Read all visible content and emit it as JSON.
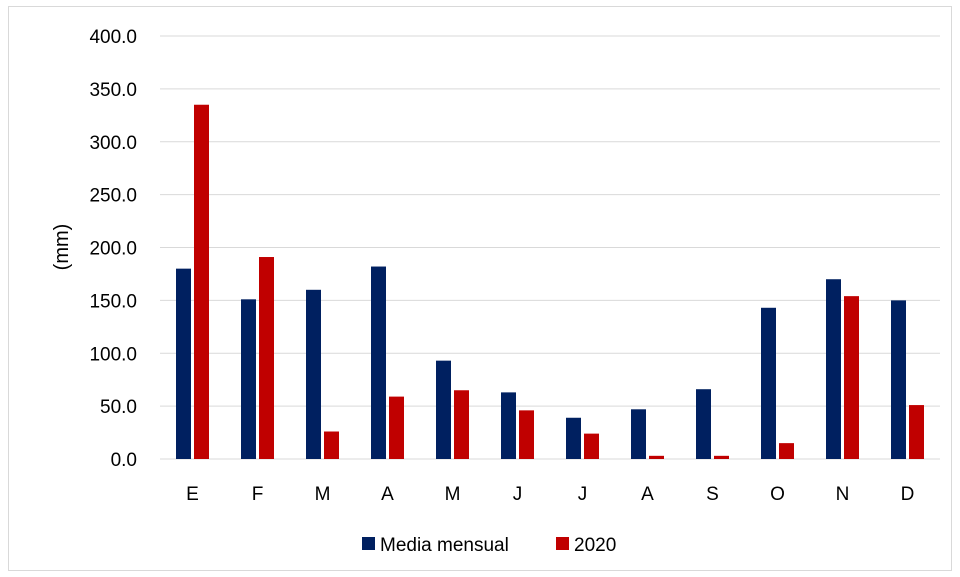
{
  "chart_data": {
    "type": "bar",
    "title": "",
    "xlabel": "",
    "ylabel": "(mm)",
    "ylim": [
      0,
      400
    ],
    "y_ticks": [
      "0.0",
      "50.0",
      "100.0",
      "150.0",
      "200.0",
      "250.0",
      "300.0",
      "350.0",
      "400.0"
    ],
    "grid": true,
    "legend_position": "bottom",
    "categories": [
      "E",
      "F",
      "M",
      "A",
      "M",
      "J",
      "J",
      "A",
      "S",
      "O",
      "N",
      "D"
    ],
    "series": [
      {
        "name": "Media mensual",
        "color": "#002060",
        "values": [
          180,
          151,
          160,
          182,
          93,
          63,
          39,
          47,
          66,
          143,
          170,
          150
        ]
      },
      {
        "name": "2020",
        "color": "#C00000",
        "values": [
          335,
          191,
          26,
          59,
          65,
          46,
          24,
          3,
          3,
          15,
          154,
          51
        ]
      }
    ]
  }
}
